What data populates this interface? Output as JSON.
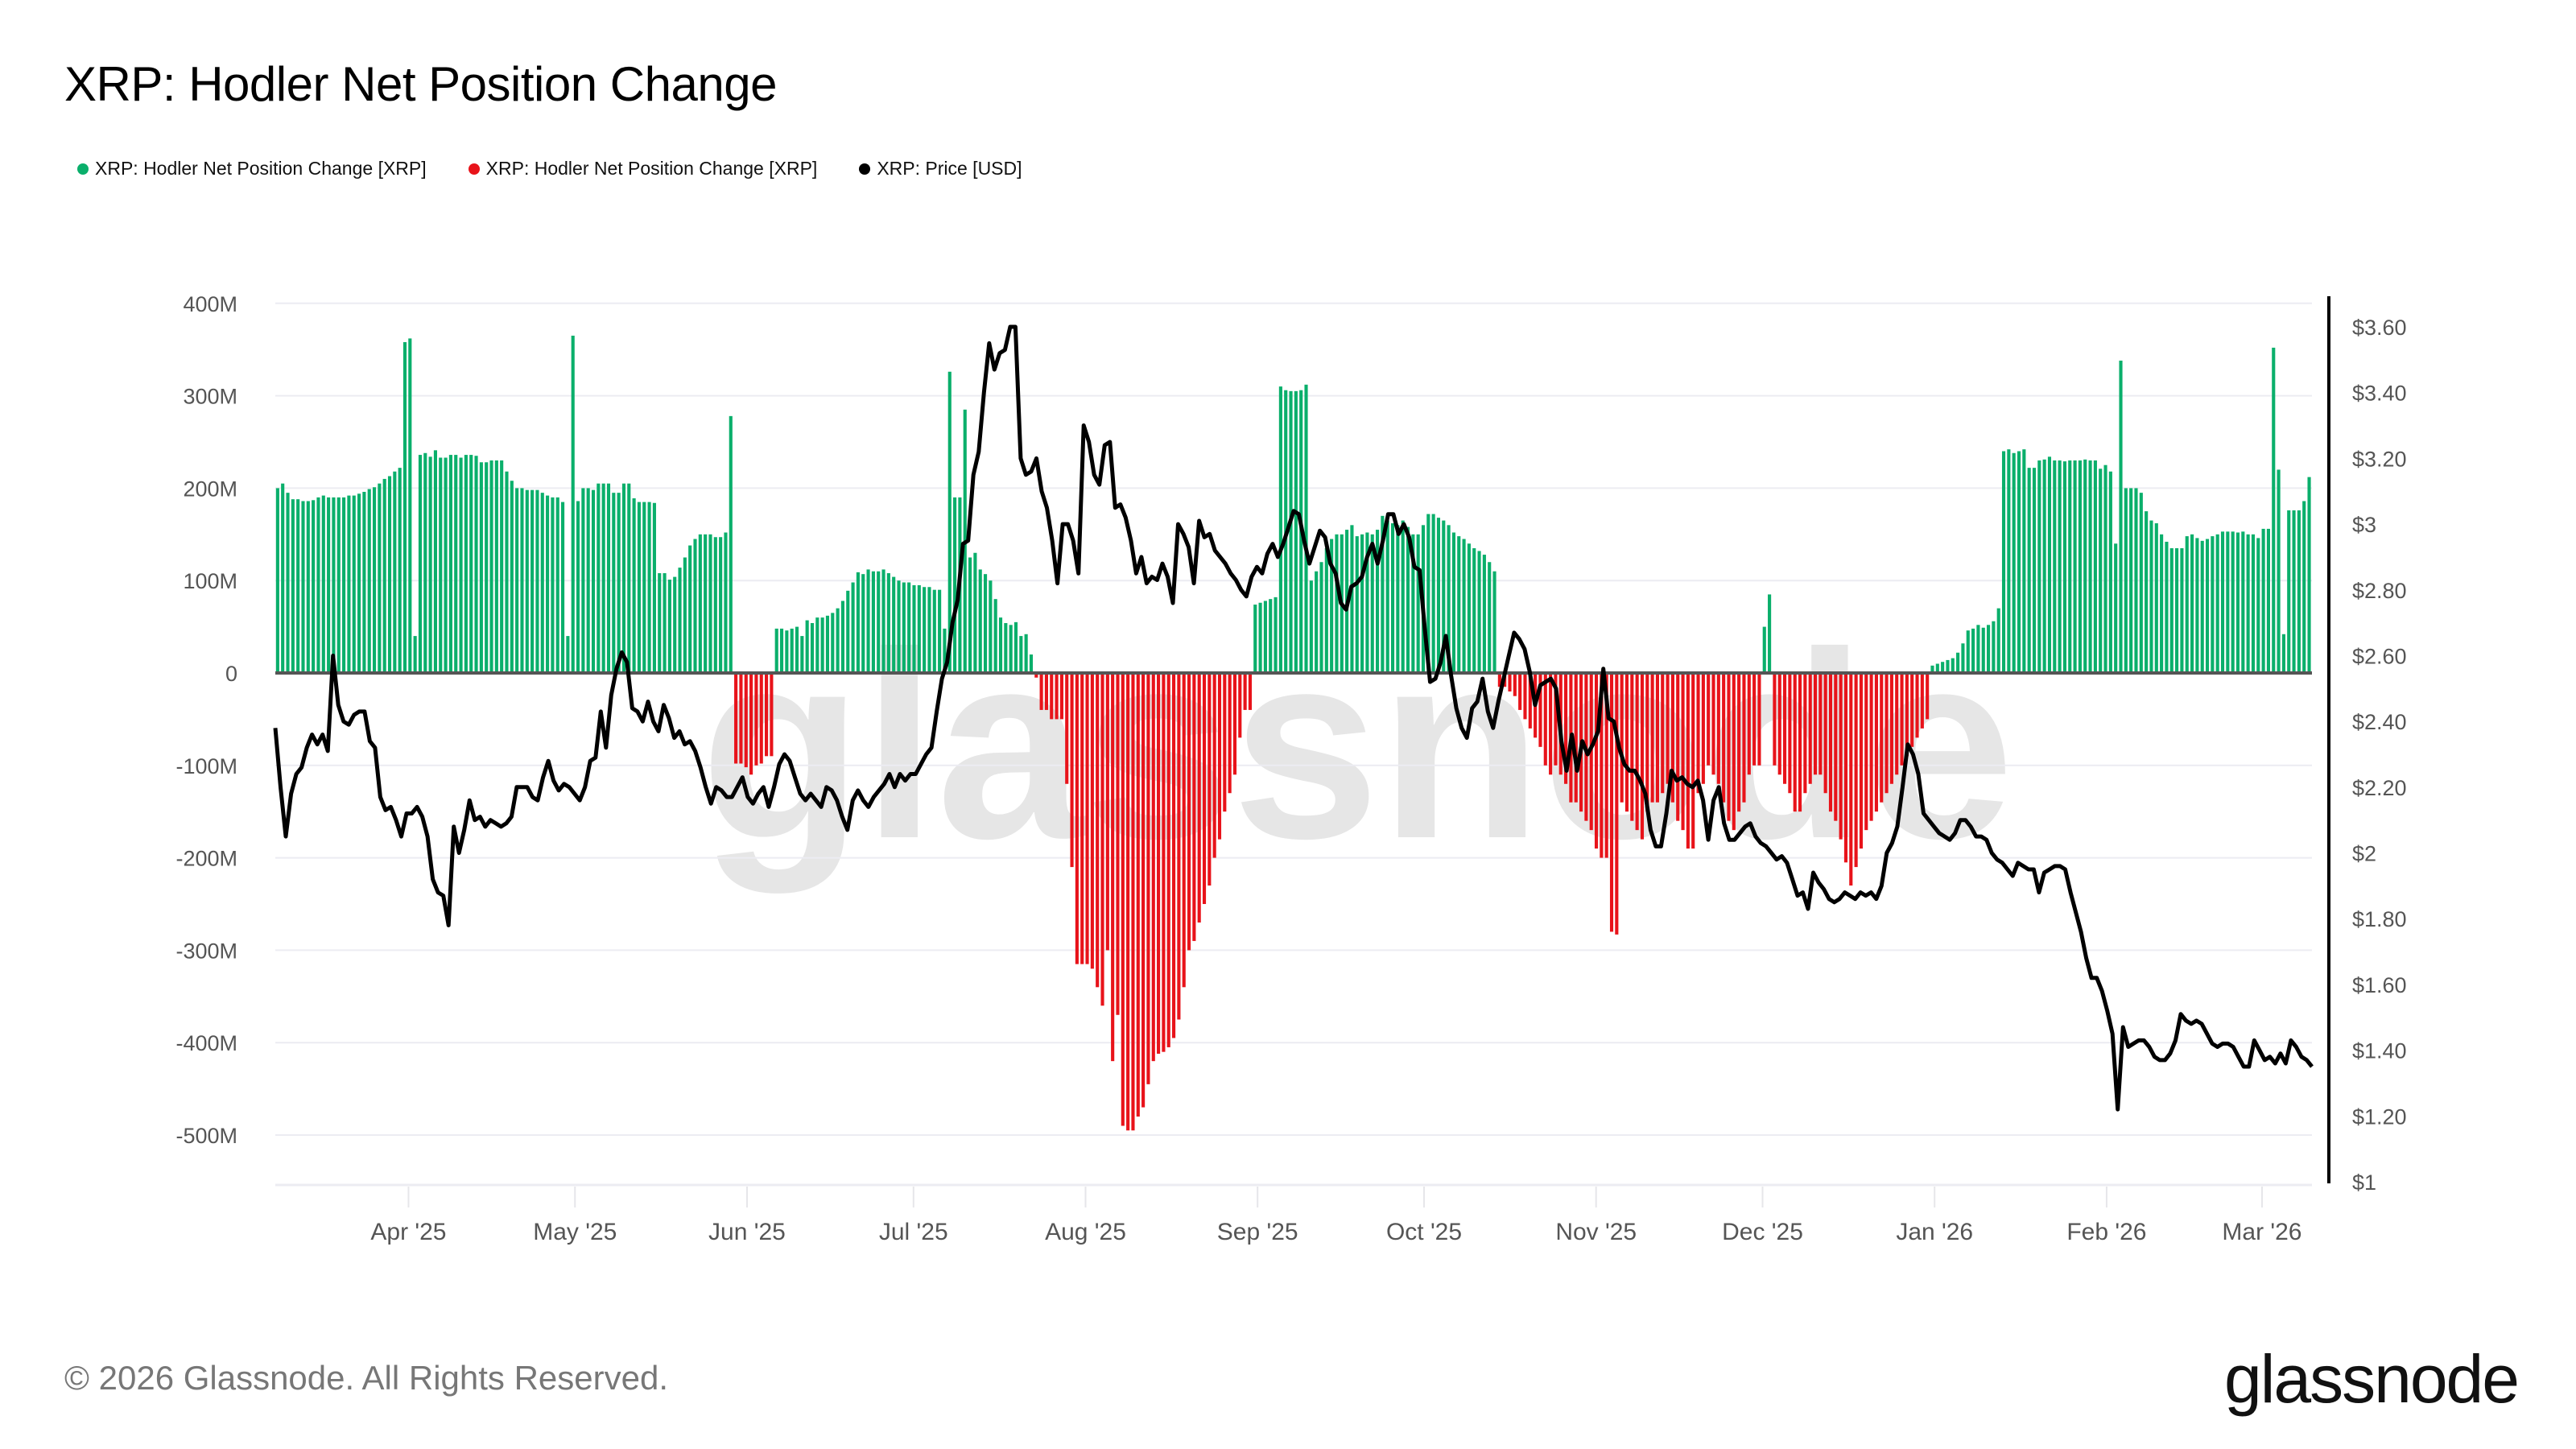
{
  "title": "XRP: Hodler Net Position Change",
  "legend": [
    {
      "label": "XRP: Hodler Net Position Change [XRP]",
      "color": "#0aaf6b"
    },
    {
      "label": "XRP: Hodler Net Position Change [XRP]",
      "color": "#e8131a"
    },
    {
      "label": "XRP: Price [USD]",
      "color": "#000000"
    }
  ],
  "footer": {
    "copyright": "© 2026 Glassnode. All Rights Reserved.",
    "logo": "glassnode",
    "watermark": "glassnode"
  },
  "chart_data": {
    "type": "bar",
    "title": "XRP: Hodler Net Position Change",
    "x_start": "2025-03-08",
    "x_end": "2026-03-10",
    "x_ticks": [
      "Apr '25",
      "May '25",
      "Jun '25",
      "Jul '25",
      "Aug '25",
      "Sep '25",
      "Oct '25",
      "Nov '25",
      "Dec '25",
      "Jan '26",
      "Feb '26",
      "Mar '26"
    ],
    "x_tick_dates": [
      "2025-04-01",
      "2025-05-01",
      "2025-06-01",
      "2025-07-01",
      "2025-08-01",
      "2025-09-01",
      "2025-10-01",
      "2025-11-01",
      "2025-12-01",
      "2026-01-01",
      "2026-02-01",
      "2026-03-01"
    ],
    "y_left": {
      "label": "Hodler Net Position Change [XRP]",
      "ticks": [
        "400M",
        "300M",
        "200M",
        "100M",
        "0",
        "-100M",
        "-200M",
        "-300M",
        "-400M",
        "-500M"
      ],
      "tick_values": [
        400,
        300,
        200,
        100,
        0,
        -100,
        -200,
        -300,
        -400,
        -500
      ],
      "range": [
        -550,
        400
      ],
      "unit": "M XRP"
    },
    "y_right": {
      "label": "Price [USD]",
      "ticks": [
        "$3.60",
        "$3.40",
        "$3.20",
        "$3",
        "$2.80",
        "$2.60",
        "$2.40",
        "$2.20",
        "$2",
        "$1.80",
        "$1.60",
        "$1.40",
        "$1.20",
        "$1"
      ],
      "tick_values": [
        3.6,
        3.4,
        3.2,
        3.0,
        2.8,
        2.6,
        2.4,
        2.2,
        2.0,
        1.8,
        1.6,
        1.4,
        1.2,
        1.0
      ],
      "range": [
        1.0,
        3.6
      ]
    },
    "positive_color": "#0aaf6b",
    "negative_color": "#e8131a",
    "price_color": "#000000",
    "series": [
      {
        "name": "XRP: Hodler Net Position Change [XRP]",
        "unit": "M XRP",
        "daily_values": [
          200,
          205,
          195,
          188,
          188,
          186,
          186,
          187,
          190,
          192,
          190,
          190,
          190,
          190,
          192,
          192,
          194,
          196,
          199,
          201,
          205,
          210,
          213,
          218,
          222,
          358,
          362,
          40,
          236,
          238,
          234,
          241,
          233,
          233,
          236,
          236,
          233,
          236,
          236,
          235,
          228,
          228,
          230,
          230,
          230,
          218,
          208,
          200,
          200,
          198,
          198,
          198,
          195,
          192,
          190,
          190,
          185,
          40,
          365,
          186,
          200,
          200,
          198,
          205,
          205,
          205,
          195,
          195,
          205,
          205,
          189,
          185,
          185,
          185,
          184,
          108,
          108,
          101,
          104,
          114,
          125,
          138,
          145,
          150,
          150,
          150,
          147,
          147,
          152,
          278,
          -98,
          -98,
          -102,
          -110,
          -100,
          -98,
          -90,
          -90,
          48,
          48,
          46,
          48,
          50,
          40,
          57,
          54,
          60,
          60,
          62,
          65,
          70,
          78,
          89,
          98,
          109,
          107,
          112,
          110,
          110,
          112,
          108,
          104,
          100,
          98,
          98,
          95,
          95,
          93,
          93,
          90,
          90,
          48,
          326,
          190,
          190,
          285,
          125,
          130,
          112,
          107,
          100,
          80,
          60,
          54,
          52,
          55,
          40,
          42,
          20,
          -5,
          -40,
          -40,
          -50,
          -50,
          -50,
          -120,
          -210,
          -315,
          -315,
          -315,
          -320,
          -340,
          -360,
          -300,
          -420,
          -370,
          -490,
          -495,
          -495,
          -480,
          -470,
          -445,
          -420,
          -412,
          -410,
          -405,
          -395,
          -375,
          -340,
          -300,
          -290,
          -270,
          -250,
          -230,
          -200,
          -180,
          -150,
          -130,
          -110,
          -70,
          -40,
          -40,
          74,
          76,
          78,
          80,
          82,
          310,
          306,
          305,
          305,
          306,
          312,
          100,
          110,
          120,
          135,
          145,
          150,
          150,
          155,
          160,
          148,
          150,
          152,
          150,
          155,
          170,
          165,
          162,
          160,
          165,
          158,
          150,
          150,
          160,
          172,
          172,
          168,
          165,
          160,
          152,
          148,
          145,
          140,
          135,
          132,
          128,
          120,
          110,
          -15,
          -15,
          -20,
          -25,
          -40,
          -50,
          -60,
          -70,
          -80,
          -100,
          -110,
          -100,
          -110,
          -120,
          -140,
          -140,
          -150,
          -160,
          -170,
          -190,
          -200,
          -200,
          -280,
          -283,
          -140,
          -150,
          -160,
          -170,
          -180,
          -150,
          -140,
          -140,
          -130,
          -120,
          -140,
          -160,
          -170,
          -190,
          -190,
          -130,
          -120,
          -100,
          -110,
          -120,
          -140,
          -160,
          -170,
          -150,
          -140,
          -110,
          -100,
          -100,
          50,
          85,
          -100,
          -110,
          -120,
          -130,
          -150,
          -150,
          -130,
          -120,
          -110,
          -110,
          -130,
          -150,
          -160,
          -180,
          -205,
          -230,
          -210,
          -190,
          -170,
          -160,
          -150,
          -140,
          -130,
          -120,
          -110,
          -100,
          -90,
          -80,
          -70,
          -60,
          -50,
          8,
          10,
          12,
          14,
          16,
          22,
          32,
          46,
          48,
          52,
          49,
          52,
          56,
          70,
          240,
          242,
          238,
          240,
          242,
          222,
          222,
          230,
          231,
          234,
          230,
          230,
          229,
          230,
          230,
          230,
          231,
          230,
          230,
          221,
          225,
          218,
          140,
          338,
          200,
          200,
          200,
          195,
          175,
          165,
          162,
          150,
          142,
          135,
          135,
          135,
          148,
          150,
          146,
          143,
          145,
          148,
          150,
          153,
          153,
          153,
          152,
          153,
          150,
          150,
          146,
          156,
          156,
          352,
          220,
          42,
          176,
          176,
          176,
          186,
          212
        ]
      },
      {
        "name": "XRP: Price [USD]",
        "unit": "USD",
        "daily_values": [
          2.38,
          2.2,
          2.05,
          2.18,
          2.24,
          2.26,
          2.32,
          2.36,
          2.33,
          2.36,
          2.31,
          2.6,
          2.45,
          2.4,
          2.39,
          2.42,
          2.43,
          2.43,
          2.34,
          2.32,
          2.17,
          2.13,
          2.14,
          2.1,
          2.05,
          2.12,
          2.12,
          2.14,
          2.11,
          2.05,
          1.92,
          1.88,
          1.87,
          1.78,
          2.08,
          2.0,
          2.07,
          2.16,
          2.1,
          2.11,
          2.08,
          2.1,
          2.09,
          2.08,
          2.09,
          2.11,
          2.2,
          2.2,
          2.2,
          2.17,
          2.16,
          2.23,
          2.28,
          2.22,
          2.19,
          2.21,
          2.2,
          2.18,
          2.16,
          2.2,
          2.28,
          2.29,
          2.43,
          2.32,
          2.48,
          2.56,
          2.61,
          2.58,
          2.44,
          2.43,
          2.4,
          2.46,
          2.4,
          2.37,
          2.45,
          2.41,
          2.35,
          2.37,
          2.33,
          2.34,
          2.31,
          2.26,
          2.2,
          2.15,
          2.2,
          2.19,
          2.17,
          2.17,
          2.2,
          2.23,
          2.17,
          2.15,
          2.18,
          2.2,
          2.14,
          2.2,
          2.27,
          2.3,
          2.28,
          2.23,
          2.18,
          2.16,
          2.18,
          2.16,
          2.14,
          2.2,
          2.19,
          2.16,
          2.11,
          2.07,
          2.16,
          2.19,
          2.16,
          2.14,
          2.17,
          2.19,
          2.21,
          2.24,
          2.2,
          2.24,
          2.22,
          2.24,
          2.24,
          2.27,
          2.3,
          2.32,
          2.43,
          2.53,
          2.58,
          2.7,
          2.77,
          2.94,
          2.95,
          3.15,
          3.22,
          3.4,
          3.55,
          3.47,
          3.52,
          3.53,
          3.6,
          3.6,
          3.2,
          3.15,
          3.16,
          3.2,
          3.1,
          3.05,
          2.95,
          2.82,
          3.0,
          3.0,
          2.95,
          2.85,
          3.3,
          3.25,
          3.15,
          3.12,
          3.24,
          3.25,
          3.05,
          3.06,
          3.02,
          2.95,
          2.85,
          2.9,
          2.82,
          2.84,
          2.83,
          2.88,
          2.84,
          2.76,
          3.0,
          2.97,
          2.93,
          2.82,
          3.01,
          2.96,
          2.97,
          2.92,
          2.9,
          2.88,
          2.85,
          2.83,
          2.8,
          2.78,
          2.84,
          2.87,
          2.85,
          2.91,
          2.94,
          2.9,
          2.94,
          2.99,
          3.04,
          3.03,
          2.95,
          2.88,
          2.93,
          2.98,
          2.96,
          2.88,
          2.85,
          2.76,
          2.74,
          2.81,
          2.82,
          2.84,
          2.9,
          2.94,
          2.88,
          2.95,
          3.03,
          3.03,
          2.97,
          3.0,
          2.96,
          2.87,
          2.86,
          2.68,
          2.52,
          2.53,
          2.58,
          2.66,
          2.54,
          2.44,
          2.38,
          2.35,
          2.44,
          2.46,
          2.53,
          2.43,
          2.38,
          2.46,
          2.53,
          2.6,
          2.67,
          2.65,
          2.62,
          2.55,
          2.45,
          2.51,
          2.52,
          2.53,
          2.5,
          2.34,
          2.25,
          2.36,
          2.25,
          2.34,
          2.3,
          2.33,
          2.37,
          2.56,
          2.41,
          2.4,
          2.32,
          2.27,
          2.25,
          2.25,
          2.22,
          2.18,
          2.07,
          2.02,
          2.02,
          2.12,
          2.25,
          2.22,
          2.23,
          2.21,
          2.2,
          2.22,
          2.16,
          2.04,
          2.16,
          2.2,
          2.09,
          2.04,
          2.04,
          2.06,
          2.08,
          2.09,
          2.05,
          2.03,
          2.02,
          2.0,
          1.98,
          1.99,
          1.97,
          1.92,
          1.87,
          1.88,
          1.83,
          1.94,
          1.91,
          1.89,
          1.86,
          1.85,
          1.86,
          1.88,
          1.87,
          1.86,
          1.88,
          1.87,
          1.88,
          1.86,
          1.9,
          2.0,
          2.03,
          2.08,
          2.2,
          2.33,
          2.3,
          2.24,
          2.12,
          2.1,
          2.08,
          2.06,
          2.05,
          2.04,
          2.06,
          2.1,
          2.1,
          2.08,
          2.05,
          2.05,
          2.04,
          2.0,
          1.98,
          1.97,
          1.95,
          1.93,
          1.97,
          1.96,
          1.95,
          1.95,
          1.88,
          1.94,
          1.95,
          1.96,
          1.96,
          1.95,
          1.88,
          1.82,
          1.76,
          1.68,
          1.62,
          1.62,
          1.58,
          1.52,
          1.45,
          1.22,
          1.47,
          1.41,
          1.42,
          1.43,
          1.43,
          1.41,
          1.38,
          1.37,
          1.37,
          1.39,
          1.43,
          1.51,
          1.49,
          1.48,
          1.49,
          1.48,
          1.45,
          1.42,
          1.41,
          1.42,
          1.42,
          1.41,
          1.38,
          1.35,
          1.35,
          1.43,
          1.4,
          1.37,
          1.38,
          1.36,
          1.39,
          1.36,
          1.43,
          1.41,
          1.38,
          1.37,
          1.35
        ]
      }
    ]
  }
}
